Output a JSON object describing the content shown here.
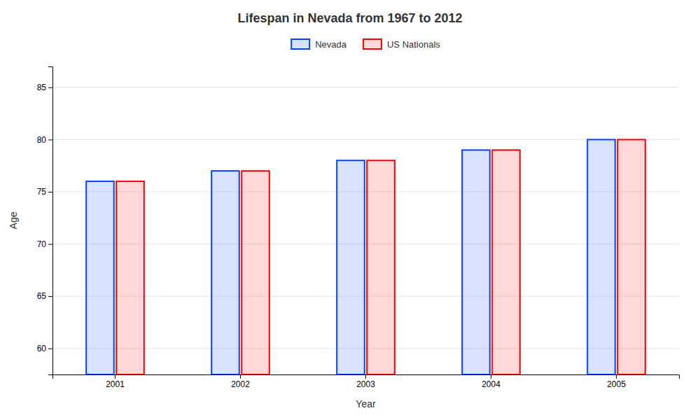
{
  "chart_data": {
    "type": "bar",
    "title": "Lifespan in Nevada from 1967 to 2012",
    "xlabel": "Year",
    "ylabel": "Age",
    "categories": [
      "2001",
      "2002",
      "2003",
      "2004",
      "2005"
    ],
    "series": [
      {
        "name": "Nevada",
        "color": "#0044ff",
        "values": [
          76,
          77,
          78,
          79,
          80
        ]
      },
      {
        "name": "US Nationals",
        "color": "#ff0000",
        "values": [
          76,
          77,
          78,
          79,
          80
        ]
      }
    ],
    "ylim": [
      57.5,
      87
    ],
    "yticks": [
      60,
      65,
      70,
      75,
      80,
      85
    ],
    "grid": true,
    "legend": "top"
  }
}
